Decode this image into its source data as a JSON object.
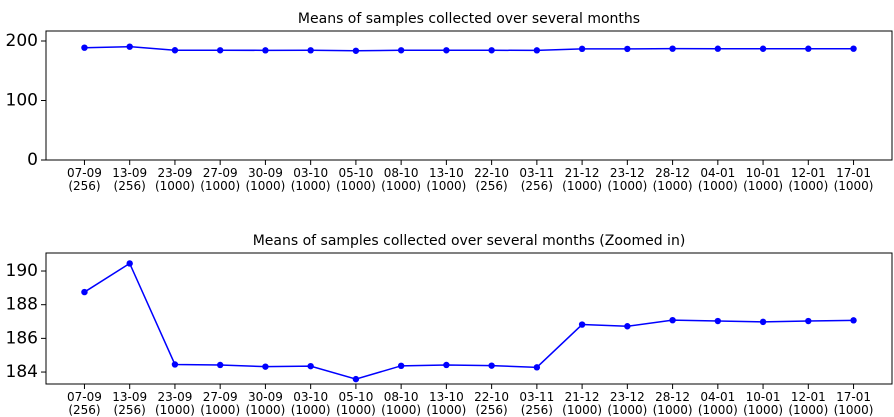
{
  "chart_data": [
    {
      "type": "line",
      "title": "Means of samples collected over several months",
      "categories": [
        "07-09\n(256)",
        "13-09\n(256)",
        "23-09\n(1000)",
        "27-09\n(1000)",
        "30-09\n(1000)",
        "03-10\n(1000)",
        "05-10\n(1000)",
        "08-10\n(1000)",
        "13-10\n(1000)",
        "22-10\n(256)",
        "03-11\n(256)",
        "21-12\n(1000)",
        "23-12\n(1000)",
        "28-12\n(1000)",
        "04-01\n(1000)",
        "10-01\n(1000)",
        "12-01\n(1000)",
        "17-01\n(1000)"
      ],
      "series": [
        {
          "color": "#0000ff",
          "values": [
            188.75,
            190.45,
            184.45,
            184.42,
            184.32,
            184.35,
            183.58,
            184.37,
            184.42,
            184.38,
            184.28,
            186.82,
            186.72,
            187.08,
            187.03,
            186.98,
            187.03,
            187.07
          ]
        }
      ],
      "ylim": [
        0,
        216.8
      ],
      "yticks": [
        0,
        100,
        200
      ]
    },
    {
      "type": "line",
      "title": "Means of samples collected over several months (Zoomed in)",
      "categories": [
        "07-09\n(256)",
        "13-09\n(256)",
        "23-09\n(1000)",
        "27-09\n(1000)",
        "30-09\n(1000)",
        "03-10\n(1000)",
        "05-10\n(1000)",
        "08-10\n(1000)",
        "13-10\n(1000)",
        "22-10\n(256)",
        "03-11\n(256)",
        "21-12\n(1000)",
        "23-12\n(1000)",
        "28-12\n(1000)",
        "04-01\n(1000)",
        "10-01\n(1000)",
        "12-01\n(1000)",
        "17-01\n(1000)"
      ],
      "series": [
        {
          "color": "#0000ff",
          "values": [
            188.75,
            190.45,
            184.45,
            184.42,
            184.32,
            184.35,
            183.58,
            184.37,
            184.42,
            184.38,
            184.28,
            186.82,
            186.72,
            187.08,
            187.03,
            186.98,
            187.03,
            187.07
          ]
        }
      ],
      "ylim": [
        183.29,
        191.07
      ],
      "yticks": [
        184,
        186,
        188,
        190
      ]
    }
  ]
}
